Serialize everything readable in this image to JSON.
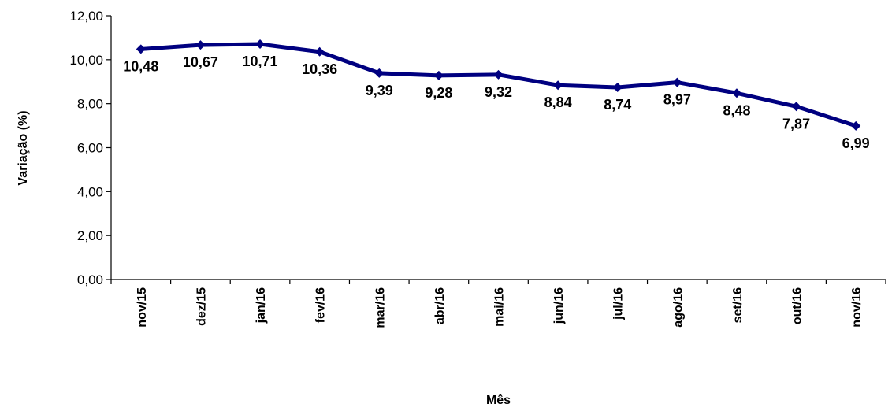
{
  "chart_data": {
    "type": "line",
    "title": "",
    "xlabel": "Mês",
    "ylabel": "Variação (%)",
    "categories": [
      "nov/15",
      "dez/15",
      "jan/16",
      "fev/16",
      "mar/16",
      "abr/16",
      "mai/16",
      "jun/16",
      "jul/16",
      "ago/16",
      "set/16",
      "out/16",
      "nov/16"
    ],
    "series": [
      {
        "values": [
          10.48,
          10.67,
          10.71,
          10.36,
          9.39,
          9.28,
          9.32,
          8.84,
          8.74,
          8.97,
          8.48,
          7.87,
          6.99
        ],
        "value_labels": [
          "10,48",
          "10,67",
          "10,71",
          "10,36",
          "9,39",
          "9,28",
          "9,32",
          "8,84",
          "8,74",
          "8,97",
          "8,48",
          "7,87",
          "6,99"
        ],
        "color": "#000080",
        "marker": "diamond"
      }
    ],
    "ylim": [
      0,
      12
    ],
    "yticks": [
      0,
      2,
      4,
      6,
      8,
      10,
      12
    ],
    "ytick_labels": [
      "0,00",
      "2,00",
      "4,00",
      "6,00",
      "8,00",
      "10,00",
      "12,00"
    ],
    "grid": false,
    "legend": "none"
  }
}
